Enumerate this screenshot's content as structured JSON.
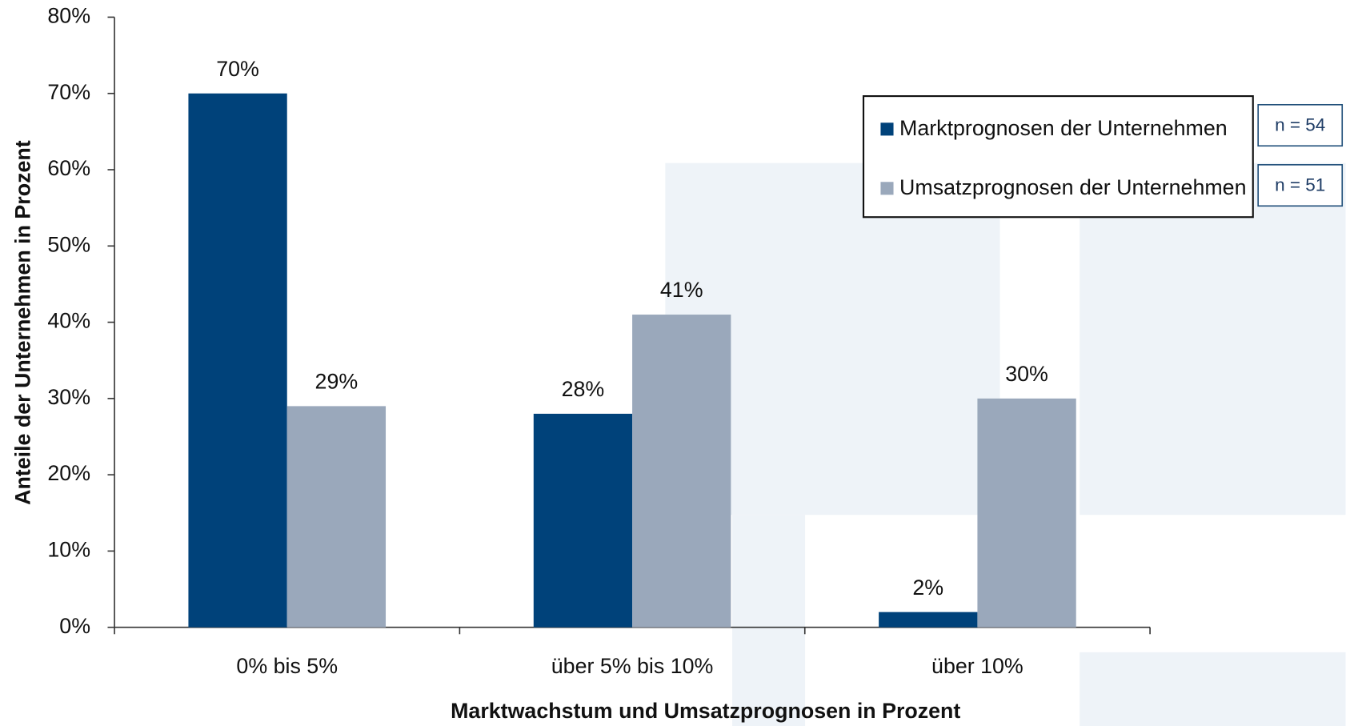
{
  "chart_data": {
    "type": "bar",
    "x_label": "Marktwachstum und Umsatzprognosen in Prozent",
    "y_label": "Anteile der Unternehmen in Prozent",
    "categories": [
      "0% bis 5%",
      "über 5% bis 10%",
      "über 10%"
    ],
    "series": [
      {
        "name": "Marktprognosen der Unternehmen",
        "color": "#00427a",
        "values": [
          70,
          28,
          2
        ],
        "value_labels": [
          "70%",
          "28%",
          "2%"
        ]
      },
      {
        "name": "Umsatzprognosen der Unternehmen",
        "color": "#9aa8bb",
        "values": [
          29,
          41,
          30
        ],
        "value_labels": [
          "29%",
          "41%",
          "30%"
        ]
      }
    ],
    "annotations": [
      "n = 54",
      "n = 51"
    ],
    "ylim": [
      0,
      80
    ],
    "yticks": [
      {
        "value": 0,
        "label": "0%"
      },
      {
        "value": 10,
        "label": "10%"
      },
      {
        "value": 20,
        "label": "20%"
      },
      {
        "value": 30,
        "label": "30%"
      },
      {
        "value": 40,
        "label": "40%"
      },
      {
        "value": 50,
        "label": "50%"
      },
      {
        "value": 60,
        "label": "60%"
      },
      {
        "value": 70,
        "label": "70%"
      },
      {
        "value": 80,
        "label": "80%"
      }
    ],
    "legend": "top-right"
  }
}
